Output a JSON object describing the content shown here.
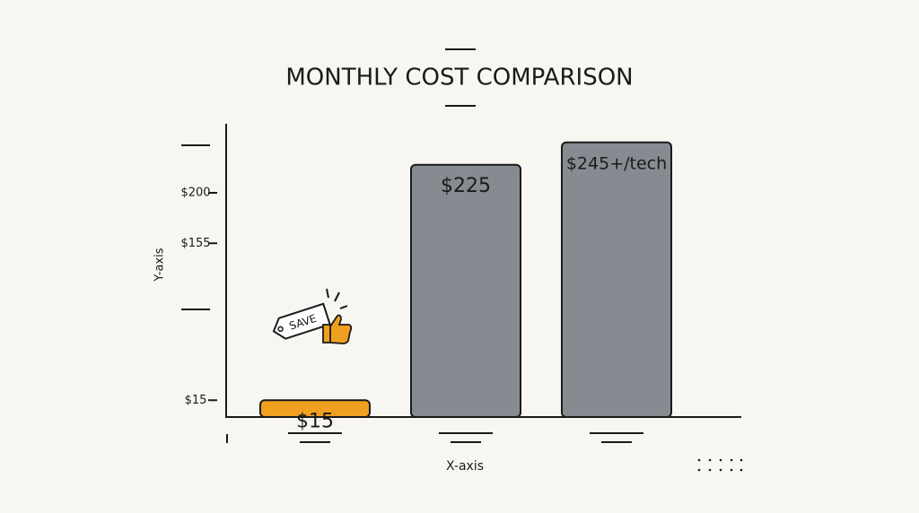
{
  "chart_data": {
    "type": "bar",
    "title": "MONTHLY COST COMPARISON",
    "x_label": "X-axis",
    "y_label": "Y-axis",
    "categories": [
      null,
      null,
      null
    ],
    "values": [
      15,
      225,
      245
    ],
    "value_labels": [
      "$15",
      "$225",
      "$245+/tech"
    ],
    "colors": [
      "#f0a020",
      "#858b91",
      "#858b91"
    ],
    "ylim": [
      0,
      260
    ],
    "yticks": [
      {
        "value": 15,
        "label": "$15"
      },
      {
        "value": 155,
        "label": "$155"
      },
      {
        "value": 200,
        "label": "$200"
      }
    ],
    "annotation": "SAVE"
  }
}
